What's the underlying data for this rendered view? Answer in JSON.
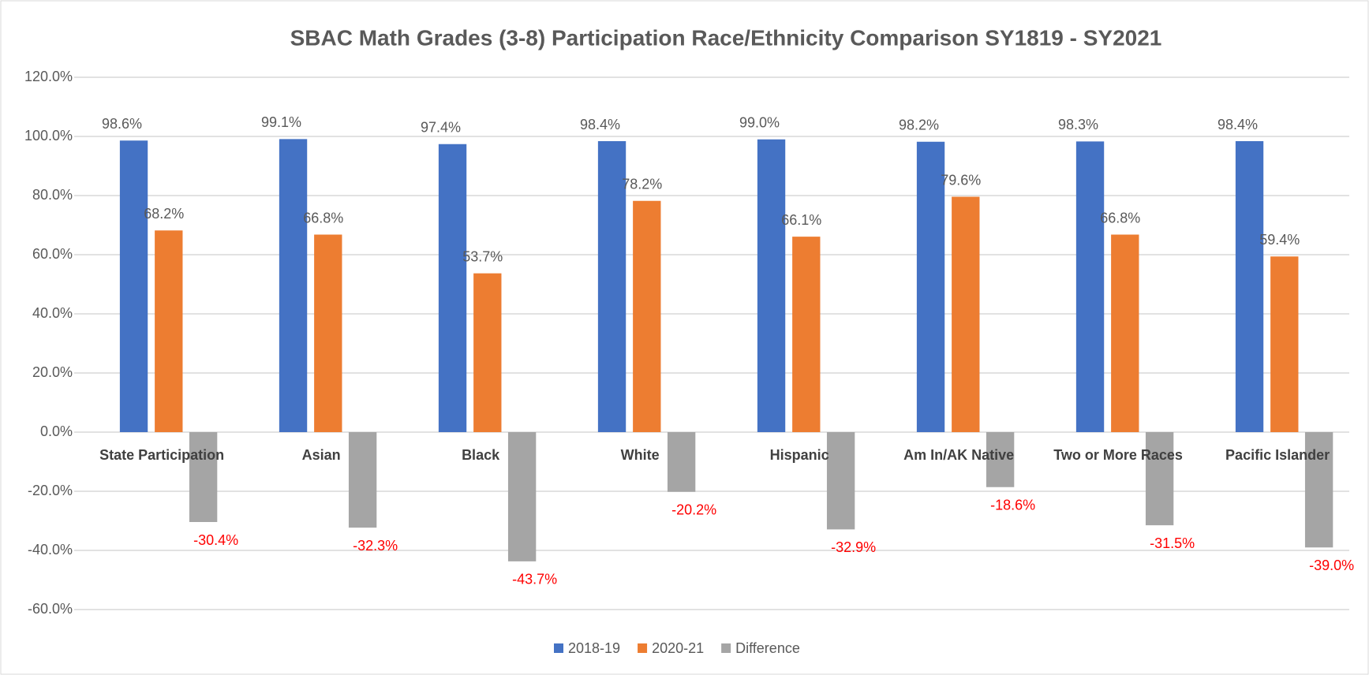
{
  "chart_data": {
    "type": "bar",
    "title": "SBAC Math Grades (3-8) Participation Race/Ethnicity Comparison SY1819 - SY2021",
    "categories": [
      "State Participation",
      "Asian",
      "Black",
      "White",
      "Hispanic",
      "Am In/AK Native",
      "Two or More Races",
      "Pacific Islander"
    ],
    "series": [
      {
        "name": "2018-19",
        "color": "#4472c4",
        "values": [
          98.6,
          99.1,
          97.4,
          98.4,
          99.0,
          98.2,
          98.3,
          98.4
        ],
        "value_labels": [
          "98.6%",
          "99.1%",
          "97.4%",
          "98.4%",
          "99.0%",
          "98.2%",
          "98.3%",
          "98.4%"
        ]
      },
      {
        "name": "2020-21",
        "color": "#ed7d31",
        "values": [
          68.2,
          66.8,
          53.7,
          78.2,
          66.1,
          79.6,
          66.8,
          59.4
        ],
        "value_labels": [
          "68.2%",
          "66.8%",
          "53.7%",
          "78.2%",
          "66.1%",
          "79.6%",
          "66.8%",
          "59.4%"
        ]
      },
      {
        "name": "Difference",
        "color": "#a5a5a5",
        "values": [
          -30.4,
          -32.3,
          -43.7,
          -20.2,
          -32.9,
          -18.6,
          -31.5,
          -39.0
        ],
        "value_labels": [
          "-30.4%",
          "-32.3%",
          "-43.7%",
          "-20.2%",
          "-32.9%",
          "-18.6%",
          "-31.5%",
          "-39.0%"
        ]
      }
    ],
    "ylim": [
      -60,
      120
    ],
    "yticks": [
      {
        "value": -60,
        "label": "-60.0%"
      },
      {
        "value": -40,
        "label": "-40.0%"
      },
      {
        "value": -20,
        "label": "-20.0%"
      },
      {
        "value": 0,
        "label": "0.0%"
      },
      {
        "value": 20,
        "label": "20.0%"
      },
      {
        "value": 40,
        "label": "40.0%"
      },
      {
        "value": 60,
        "label": "60.0%"
      },
      {
        "value": 80,
        "label": "80.0%"
      },
      {
        "value": 100,
        "label": "100.0%"
      },
      {
        "value": 120,
        "label": "120.0%"
      }
    ],
    "grid": true,
    "legend": "bottom"
  }
}
